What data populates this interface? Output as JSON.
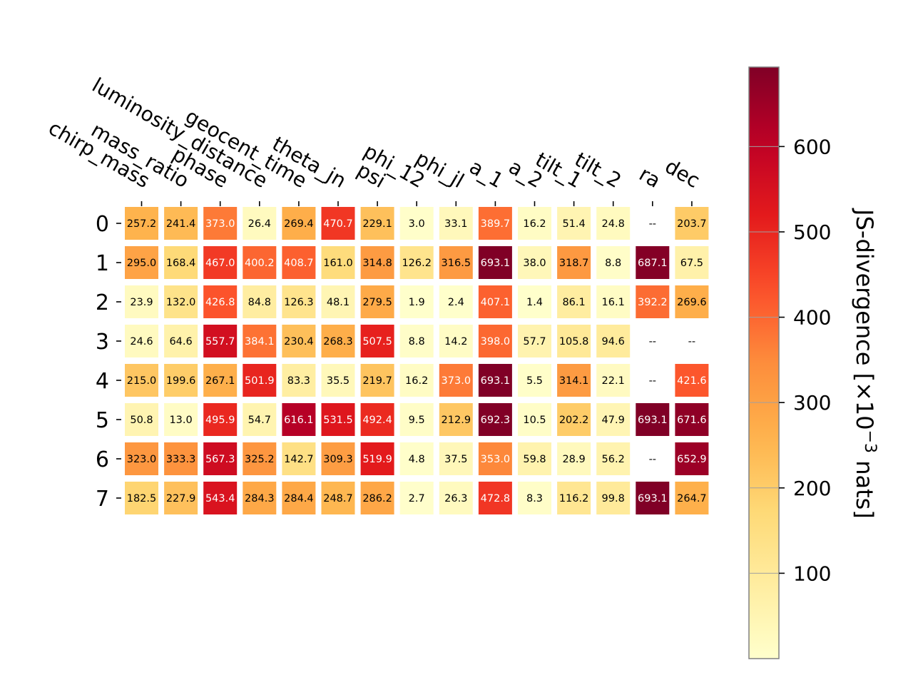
{
  "chart_data": {
    "type": "heatmap",
    "title": "",
    "xlabel": "",
    "ylabel": "",
    "x_categories": [
      "chirp_mass",
      "mass_ratio",
      "phase",
      "luminosity_distance",
      "geocent_time",
      "theta_jn",
      "psi",
      "phi_12",
      "phi_jl",
      "a_1",
      "a_2",
      "tilt_1",
      "tilt_2",
      "ra",
      "dec"
    ],
    "y_categories": [
      "0",
      "1",
      "2",
      "3",
      "4",
      "5",
      "6",
      "7"
    ],
    "values": [
      [
        257.2,
        241.4,
        373.0,
        26.4,
        269.4,
        470.7,
        229.1,
        3.0,
        33.1,
        389.7,
        16.2,
        51.4,
        24.8,
        null,
        203.7
      ],
      [
        295.0,
        168.4,
        467.0,
        400.2,
        408.7,
        161.0,
        314.8,
        126.2,
        316.5,
        693.1,
        38.0,
        318.7,
        8.8,
        687.1,
        67.5
      ],
      [
        23.9,
        132.0,
        426.8,
        84.8,
        126.3,
        48.1,
        279.5,
        1.9,
        2.4,
        407.1,
        1.4,
        86.1,
        16.1,
        392.2,
        269.6
      ],
      [
        24.6,
        64.6,
        557.7,
        384.1,
        230.4,
        268.3,
        507.5,
        8.8,
        14.2,
        398.0,
        57.7,
        105.8,
        94.6,
        null,
        null
      ],
      [
        215.0,
        199.6,
        267.1,
        501.9,
        83.3,
        35.5,
        219.7,
        16.2,
        373.0,
        693.1,
        5.5,
        314.1,
        22.1,
        null,
        421.6
      ],
      [
        50.8,
        13.0,
        495.9,
        54.7,
        616.1,
        531.5,
        492.4,
        9.5,
        212.9,
        692.3,
        10.5,
        202.2,
        47.9,
        693.1,
        671.6
      ],
      [
        323.0,
        333.3,
        567.3,
        325.2,
        142.7,
        309.3,
        519.9,
        4.8,
        37.5,
        353.0,
        59.8,
        28.9,
        56.2,
        null,
        652.9
      ],
      [
        182.5,
        227.9,
        543.4,
        284.3,
        284.4,
        248.7,
        286.2,
        2.7,
        26.3,
        472.8,
        8.3,
        116.2,
        99.8,
        693.1,
        264.7
      ]
    ],
    "missing_label": "--",
    "colorbar": {
      "label_main": "JS-divergence [×10",
      "label_sup": "−3",
      "label_end": " nats]",
      "min": 0,
      "max": 693.1,
      "ticks": [
        100,
        200,
        300,
        400,
        500,
        600
      ],
      "colormap": "YlOrRd",
      "placement": "right"
    },
    "grid": false
  }
}
